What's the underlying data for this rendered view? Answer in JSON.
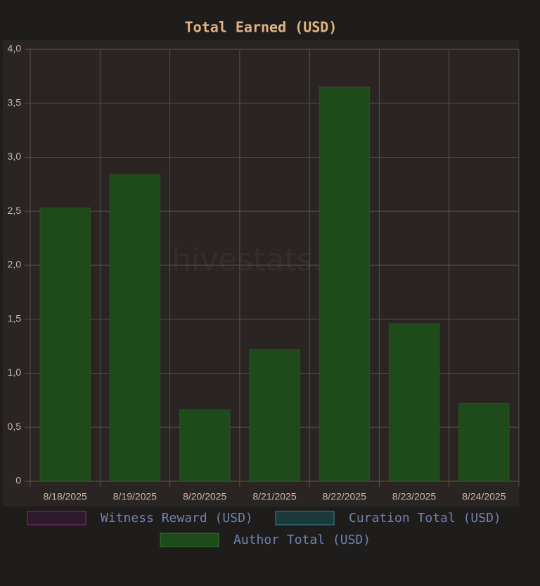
{
  "chart_data": {
    "type": "bar",
    "stacked": true,
    "title": "Total Earned (USD)",
    "watermark": "hivestats.io",
    "categories": [
      "8/18/2025",
      "8/19/2025",
      "8/20/2025",
      "8/21/2025",
      "8/22/2025",
      "8/23/2025",
      "8/24/2025"
    ],
    "series": [
      {
        "name": "Witness Reward (USD)",
        "color": "#8a2a7a",
        "fill": "#2e1a2a",
        "values": [
          0,
          0,
          0,
          0,
          0,
          0,
          0
        ]
      },
      {
        "name": "Curation Total (USD)",
        "color": "#2a8a8a",
        "fill": "#1a3a3a",
        "values": [
          0,
          0,
          0,
          0,
          0,
          0,
          0
        ]
      },
      {
        "name": "Author Total (USD)",
        "color": "#2b7a25",
        "fill": "#1f4a1a",
        "values": [
          2.53,
          2.84,
          0.66,
          1.22,
          3.65,
          1.46,
          0.72
        ]
      }
    ],
    "ylim": [
      0,
      4
    ],
    "yticks": [
      0,
      {
        "value": 0.5,
        "label": "0,5"
      },
      {
        "value": 1,
        "label": "1,0"
      },
      {
        "value": 1.5,
        "label": "1,5"
      },
      {
        "value": 2,
        "label": "2,0"
      },
      {
        "value": 2.5,
        "label": "2,5"
      },
      {
        "value": 3,
        "label": "3,0"
      },
      {
        "value": 3.5,
        "label": "3,5"
      },
      {
        "value": 4,
        "label": "4,0"
      }
    ],
    "grid": true
  }
}
